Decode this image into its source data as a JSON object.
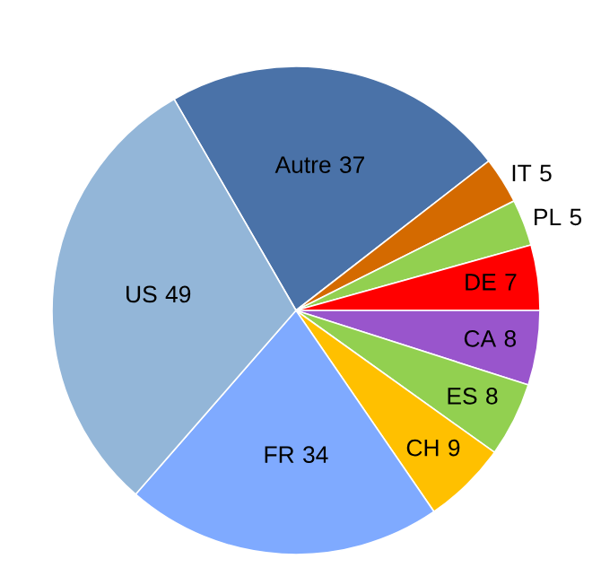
{
  "chart_data": {
    "type": "pie",
    "categories": [
      "Autre",
      "IT",
      "PL",
      "DE",
      "CA",
      "ES",
      "CH",
      "FR",
      "US"
    ],
    "values": [
      37,
      5,
      5,
      7,
      8,
      8,
      9,
      34,
      49
    ],
    "colors": [
      "#4a72a8",
      "#d46a00",
      "#92d050",
      "#ff0000",
      "#9955cc",
      "#92d050",
      "#ffc000",
      "#7faaff",
      "#93b6d8"
    ],
    "data_labels": true
  }
}
